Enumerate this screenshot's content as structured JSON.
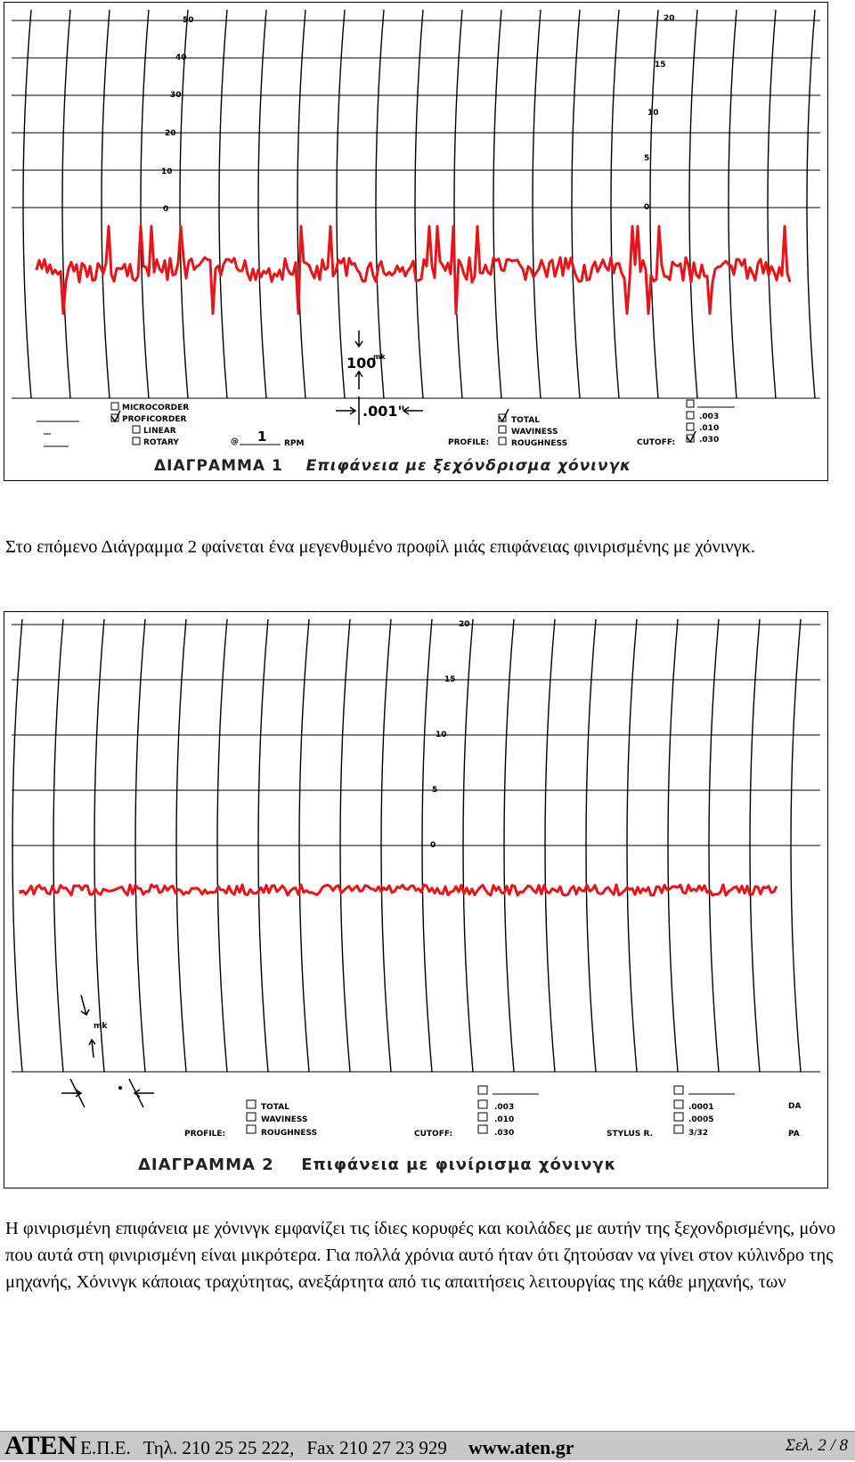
{
  "diagram1": {
    "caption_title": "ΔΙΑΓΡΑΜΜΑ 1",
    "caption_text": "Επιφάνεια με ξεχόνδρισμα χόνινγκ",
    "left_scale": [
      "50",
      "40",
      "30",
      "20",
      "10",
      "0"
    ],
    "right_scale": [
      "20",
      "15",
      "10",
      "5",
      "0"
    ],
    "instrument_options": [
      "MICROCORDER",
      "PROFICORDER",
      "LINEAR",
      "ROTARY"
    ],
    "speed_label_prefix": "@",
    "speed_value": "1",
    "speed_unit": "RPM",
    "profile_label": "PROFILE:",
    "profile_options": [
      "TOTAL",
      "WAVINESS",
      "ROUGHNESS"
    ],
    "cutoff_label": "CUTOFF:",
    "cutoff_options": [
      ".003",
      ".010",
      ".030"
    ],
    "vertical_scale_label": "100",
    "vertical_scale_unit": "mk",
    "horizontal_scale_label": ".001\""
  },
  "paragraph1": "Στο επόμενο Διάγραμμα 2 φαίνεται ένα μεγενθυμένο προφίλ μιάς επιφάνειας φινιρισμένης με χόνινγκ.",
  "diagram2": {
    "caption_title": "ΔΙΑΓΡΑΜΜΑ 2",
    "caption_text": "Επιφάνεια με φινίρισμα χόνινγκ",
    "right_scale": [
      "20",
      "15",
      "10",
      "5",
      "0"
    ],
    "vertical_scale_unit": "mk",
    "profile_label": "PROFILE:",
    "profile_options": [
      "TOTAL",
      "WAVINESS",
      "ROUGHNESS"
    ],
    "cutoff_label": "CUTOFF:",
    "cutoff_options": [
      ".003",
      ".010",
      ".030"
    ],
    "stylus_label": "STYLUS R.",
    "stylus_options": [
      ".0001",
      ".0005",
      "3/32"
    ],
    "edge_text_top": "DA",
    "edge_text_bottom": "PA"
  },
  "paragraph2": "Η φινιρισμένη επιφάνεια με χόνινγκ εμφανίζει τις ίδιες κορυφές και κοιλάδες με αυτήν της ξεχονδρισμένης, μόνο που αυτά στη φινιρισμένη είναι μικρότερα. Για πολλά χρόνια αυτό ήταν ότι ζητούσαν να γίνει στον κύλινδρο της μηχανής, Χόνινγκ κάποιας τραχύτητας, ανεξάρτητα από τις απαιτήσεις λειτουργίας της κάθε μηχανής, των",
  "footer": {
    "company": "ATEN",
    "company_suffix": "Ε.Π.Ε.",
    "phone": "Τηλ. 210 25 25 222,",
    "fax": "Fax 210 27 23 929",
    "website": "www.aten.gr",
    "page": "Σελ. 2 / 8"
  },
  "colors": {
    "trace": "#e8141a",
    "grid": "#000000",
    "footer_bg": "#c8c8c8"
  }
}
